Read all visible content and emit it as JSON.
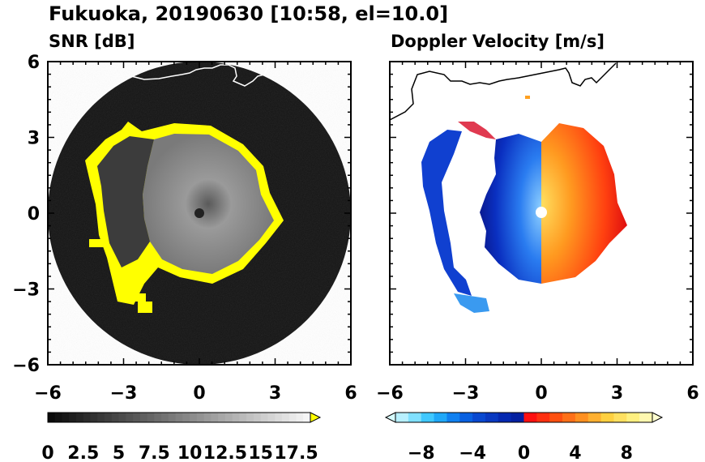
{
  "figure": {
    "title": "Fukuoka, 20190630 [10:58, el=10.0]"
  },
  "chart_data": [
    {
      "type": "heatmap",
      "panel": "left",
      "title": "SNR [dB]",
      "xlabel": "",
      "ylabel": "",
      "xlim": [
        -6,
        6
      ],
      "ylim": [
        -6,
        6
      ],
      "x_ticks": [
        -6,
        -3,
        0,
        3,
        6
      ],
      "y_ticks": [
        -6,
        -3,
        0,
        3,
        6
      ],
      "x_tick_labels": [
        "−6",
        "−3",
        "0",
        "3",
        "6"
      ],
      "y_tick_labels": [
        "6",
        "3",
        "0",
        "−3",
        "−6"
      ],
      "colorbar": {
        "min": 0,
        "max": 18.5,
        "extend": "max",
        "tick_values": [
          0,
          2.5,
          5,
          7.5,
          10,
          12.5,
          15,
          17.5
        ],
        "tick_labels": [
          "0",
          "2.5",
          "5",
          "7.5",
          "10",
          "12.5",
          "15",
          "17.5"
        ]
      },
      "colors": {
        "background": "#141414",
        "echo": "#8a8a8a",
        "edge": "#ffff00"
      }
    },
    {
      "type": "heatmap",
      "panel": "right",
      "title": "Doppler Velocity [m/s]",
      "xlabel": "",
      "ylabel": "",
      "xlim": [
        -6,
        6
      ],
      "ylim": [
        -6,
        6
      ],
      "x_ticks": [
        -6,
        -3,
        0,
        3,
        6
      ],
      "y_ticks": [
        -6,
        -3,
        0,
        3,
        6
      ],
      "x_tick_labels": [
        "−6",
        "−3",
        "0",
        "3",
        "6"
      ],
      "colorbar": {
        "min": -10,
        "max": 10,
        "extend": "both",
        "tick_values": [
          -8,
          -4,
          0,
          4,
          8
        ],
        "tick_labels": [
          "−8",
          "−4",
          "0",
          "4",
          "8"
        ]
      },
      "colors": {
        "negative": "#0a3cd0",
        "positive": "#ff3010"
      }
    }
  ]
}
